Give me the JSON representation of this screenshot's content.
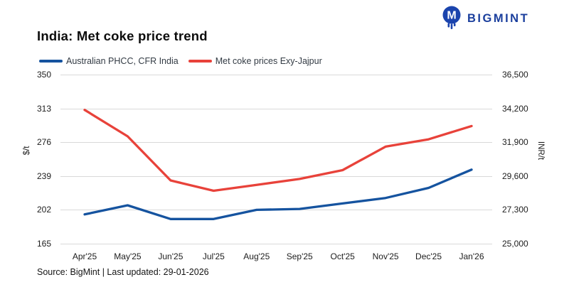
{
  "header": {
    "title": "India: Met coke price trend",
    "logo_text": "BIGMINT",
    "logo_color": "#1b3f9d"
  },
  "legend": [
    {
      "label": "Australian PHCC, CFR India",
      "color": "#15539f"
    },
    {
      "label": "Met coke prices Exy-Jajpur",
      "color": "#e8423a"
    }
  ],
  "footer": {
    "text": "Source: BigMint | Last updated: 29-01-2026"
  },
  "chart_data": {
    "type": "line",
    "title": "India: Met coke price trend",
    "grid": "horizontal",
    "legend_position": "top",
    "categories": [
      "Apr'25",
      "May'25",
      "Jun'25",
      "Jul'25",
      "Aug'25",
      "Sep'25",
      "Oct'25",
      "Nov'25",
      "Dec'25",
      "Jan'26"
    ],
    "series": [
      {
        "name": "Australian PHCC, CFR India",
        "axis": "left",
        "unit": "$/t",
        "color": "#15539f",
        "values": [
          197,
          207,
          192,
          192,
          202,
          203,
          209,
          215,
          226,
          246
        ]
      },
      {
        "name": "Met coke prices Exy-Jajpur",
        "axis": "right",
        "unit": "INR/t",
        "color": "#e8423a",
        "values": [
          34100,
          32300,
          29300,
          28600,
          29000,
          29400,
          30000,
          31600,
          32100,
          33000
        ]
      }
    ],
    "left_axis": {
      "label": "$/t",
      "min": 165,
      "max": 350,
      "ticks": [
        "350",
        "313",
        "276",
        "239",
        "202",
        "165"
      ]
    },
    "right_axis": {
      "label": "INR/t",
      "min": 25000,
      "max": 36500,
      "ticks": [
        "36,500",
        "34,200",
        "31,900",
        "29,600",
        "27,300",
        "25,000"
      ]
    }
  }
}
